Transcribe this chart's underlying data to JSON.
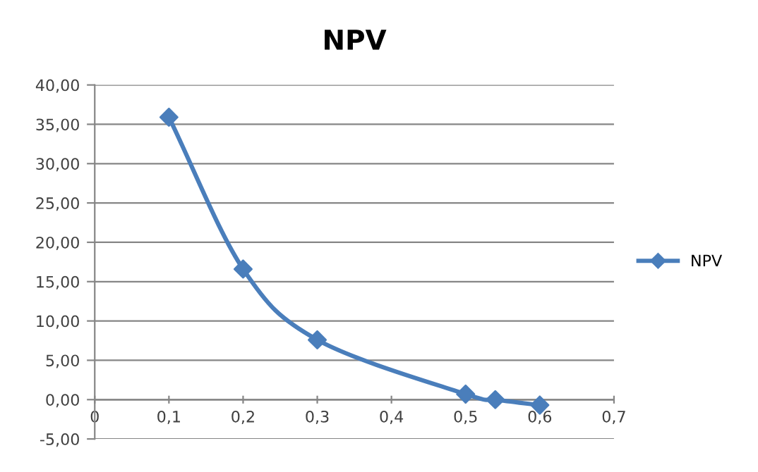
{
  "chart_data": {
    "type": "line",
    "title": "NPV",
    "x": [
      0.1,
      0.2,
      0.3,
      0.5,
      0.54,
      0.6
    ],
    "series": [
      {
        "name": "NPV",
        "color": "#4a7ebb",
        "values": [
          35.9,
          16.6,
          7.6,
          0.7,
          0.0,
          -0.7
        ]
      }
    ],
    "xlim": [
      0,
      0.7
    ],
    "xticks": [
      0,
      {
        "value": 0.1,
        "label": "0,1"
      },
      {
        "value": 0.2,
        "label": "0,2"
      },
      {
        "value": 0.3,
        "label": "0,3"
      },
      {
        "value": 0.4,
        "label": "0,4"
      },
      {
        "value": 0.5,
        "label": "0,5"
      },
      {
        "value": 0.6,
        "label": "0,6"
      },
      {
        "value": 0.7,
        "label": "0,7"
      }
    ],
    "ylim": [
      -5,
      40
    ],
    "yticks": [
      {
        "value": -5,
        "label": "-5,00"
      },
      {
        "value": 0,
        "label": "0,00"
      },
      {
        "value": 5,
        "label": "5,00"
      },
      {
        "value": 10,
        "label": "10,00"
      },
      {
        "value": 15,
        "label": "15,00"
      },
      {
        "value": 20,
        "label": "20,00"
      },
      {
        "value": 25,
        "label": "25,00"
      },
      {
        "value": 30,
        "label": "30,00"
      },
      {
        "value": 35,
        "label": "35,00"
      },
      {
        "value": 40,
        "label": "40,00"
      }
    ],
    "grid": "y",
    "legend": "right",
    "marker": "diamond",
    "line_style": "solid"
  }
}
